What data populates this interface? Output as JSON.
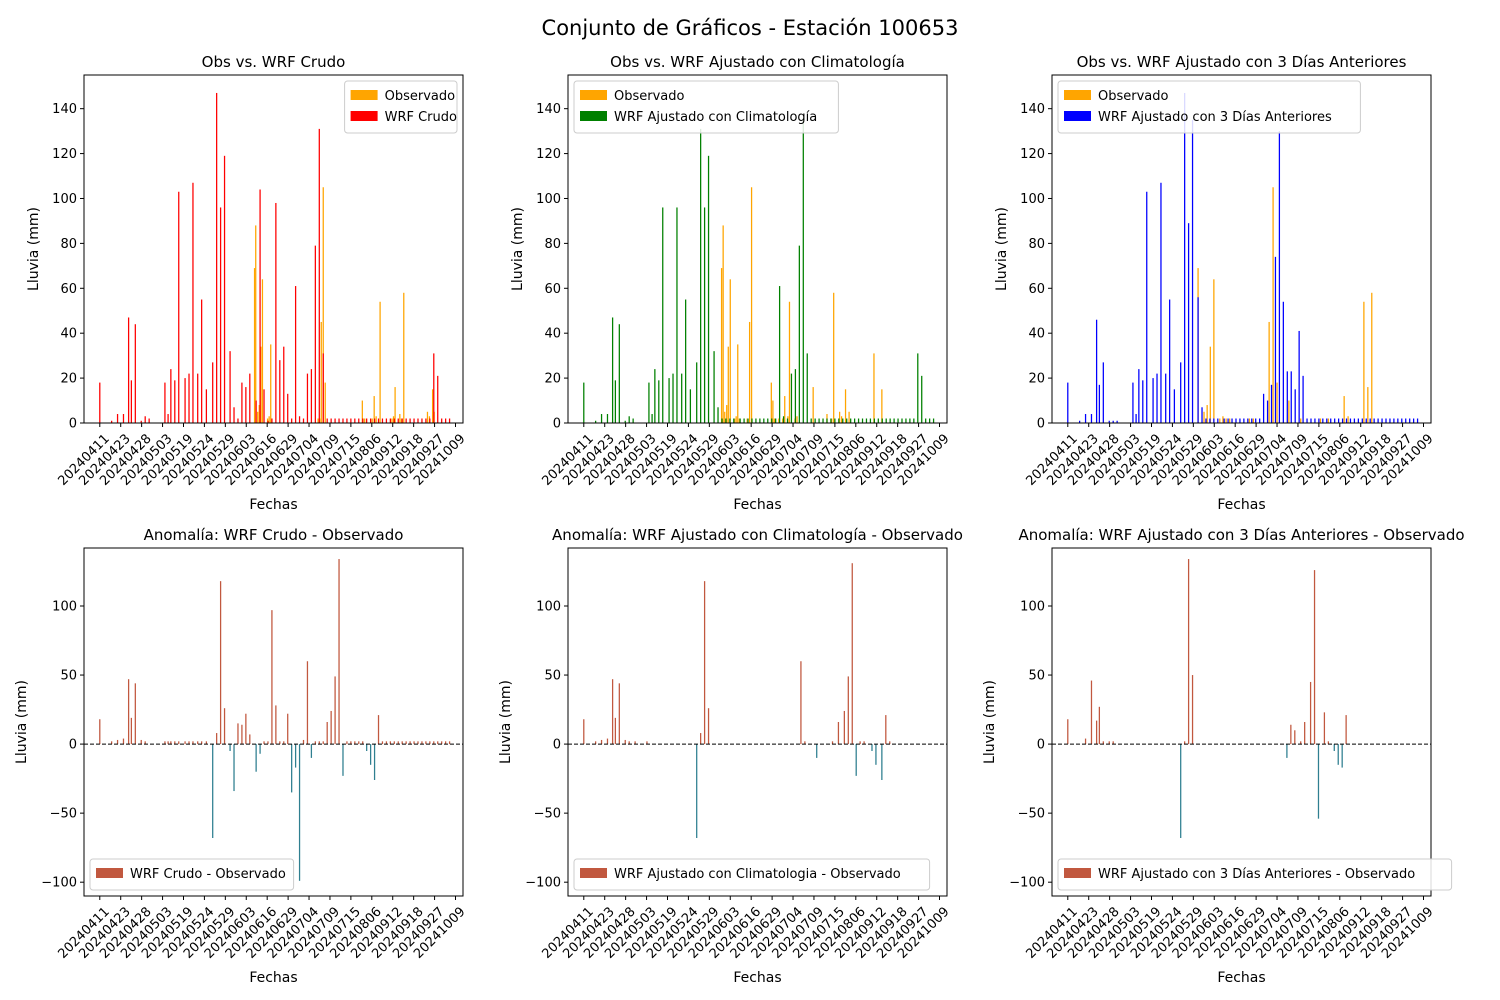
{
  "suptitle": "Conjunto de Gráficos - Estación 100653",
  "colors": {
    "observado": "#FFA500",
    "wrf_crudo": "#FF0000",
    "wrf_clima": "#008000",
    "wrf_3dias": "#0000FF",
    "anom_pos": "#C1583F",
    "anom_neg": "#2F7F90",
    "legend_patch": "#C1583F"
  },
  "x_tick_labels": [
    "20240411",
    "20240423",
    "20240428",
    "20240503",
    "20240519",
    "20240524",
    "20240529",
    "20240603",
    "20240616",
    "20240629",
    "20240704",
    "20240709",
    "20240715",
    "20240806",
    "20240912",
    "20240918",
    "20240927",
    "20241009"
  ],
  "chart_data": [
    {
      "type": "bar",
      "title": "Obs vs. WRF Crudo",
      "xlabel": "Fechas",
      "ylabel": "Lluvia (mm)",
      "ylim": [
        0,
        155
      ],
      "yticks": [
        0,
        20,
        40,
        60,
        80,
        100,
        120,
        140
      ],
      "legend_position": "upper right",
      "series": [
        {
          "name": "Observado",
          "color_key": "observado",
          "x": [
            41.2,
            41.5,
            42,
            42.4,
            42.8,
            43.2,
            44.5,
            44.9,
            45.3,
            57.3,
            57.7,
            58.1,
            58.6,
            59.1,
            68.5,
            69,
            69.5,
            71,
            71.5,
            72,
            73,
            76,
            76.4,
            76.8,
            78,
            78.4,
            79,
            85,
            85.5,
            86.3,
            86.7
          ],
          "values": [
            69,
            88,
            5,
            8,
            34,
            64,
            2,
            3,
            35,
            2,
            2,
            45,
            105,
            18,
            10,
            2,
            2,
            2,
            12,
            3,
            54,
            2,
            3,
            16,
            4,
            2,
            58,
            5,
            3,
            15,
            5
          ]
        },
        {
          "name": "WRF Crudo",
          "color_key": "wrf_crudo",
          "x": [
            2,
            5,
            6.5,
            8,
            9.3,
            10,
            11,
            12.5,
            13.5,
            14.5,
            18.5,
            19.3,
            20,
            21,
            22,
            23.6,
            24.6,
            25.6,
            26.8,
            27.8,
            29,
            30.6,
            31.6,
            32.6,
            33.6,
            35,
            36,
            37,
            38,
            39,
            40,
            41.6,
            42.6,
            43.6,
            44.6,
            45.6,
            46.6,
            47.6,
            48.6,
            49.6,
            50.6,
            51.6,
            52.6,
            53.6,
            54.6,
            55.6,
            56.6,
            57.6,
            58.6,
            59.6,
            60.6,
            61.6,
            62.6,
            63.6,
            64.6,
            65.6,
            66.6,
            67.6,
            68.6,
            69.6,
            70.6,
            71.6,
            72.6,
            73.6,
            74.6,
            75.6,
            76.6,
            77.6,
            78.6,
            79.6,
            80.6,
            81.6,
            82.6,
            83.6,
            84.6,
            85.6,
            86.6,
            87.6,
            88.6,
            89.6,
            90.6
          ],
          "values": [
            18,
            1,
            4,
            4,
            47,
            19,
            44,
            1,
            3,
            2,
            18,
            4,
            24,
            19,
            103,
            20,
            22,
            107,
            22,
            55,
            15,
            27,
            147,
            96,
            119,
            32,
            7,
            2,
            18,
            16,
            22,
            10,
            104,
            15,
            1,
            2,
            98,
            28,
            34,
            13,
            2,
            61,
            3,
            2,
            22,
            24,
            79,
            131,
            31,
            2,
            2,
            2,
            2,
            2,
            2,
            2,
            2,
            2,
            2,
            2,
            2,
            2,
            2,
            2,
            2,
            2,
            2,
            2,
            2,
            2,
            2,
            2,
            2,
            2,
            2,
            2,
            31,
            21,
            2,
            2,
            2
          ]
        }
      ]
    },
    {
      "type": "bar",
      "title": "Obs vs. WRF Ajustado con Climatología",
      "xlabel": "Fechas",
      "ylabel": "Lluvia (mm)",
      "ylim": [
        0,
        155
      ],
      "yticks": [
        0,
        20,
        40,
        60,
        80,
        100,
        120,
        140
      ],
      "legend_position": "upper left",
      "series": [
        {
          "name": "Observado",
          "color_key": "observado",
          "x": [
            36.9,
            37.3,
            37.7,
            38.2,
            38.6,
            39.1,
            40.2,
            40.6,
            41,
            41.4,
            43.4,
            44,
            44.5,
            49.5,
            49.9,
            50.3,
            51.4,
            52.4,
            52.9,
            53.7,
            54.1,
            55.5,
            56,
            60.1,
            63.6,
            64.8,
            65.3,
            66.8,
            67.3,
            68.3,
            69.2,
            75.5,
            77.5
          ],
          "values": [
            69,
            88,
            5,
            8,
            34,
            64,
            2,
            3,
            35,
            2,
            2,
            45,
            105,
            18,
            10,
            2,
            2,
            2,
            12,
            3,
            54,
            2,
            3,
            16,
            4,
            2,
            58,
            5,
            3,
            15,
            5,
            31,
            15
          ]
        },
        {
          "name": "WRF Ajustado con Climatología",
          "color_key": "wrf_clima",
          "x": [
            2,
            5,
            6.5,
            8,
            9.3,
            10,
            11,
            12.5,
            13.5,
            14.5,
            18.5,
            19.3,
            20,
            21,
            22,
            23.6,
            24.6,
            25.6,
            26.8,
            27.8,
            29,
            30.6,
            31.6,
            32.6,
            33.6,
            35,
            36,
            37,
            38,
            39,
            40,
            41.6,
            42.6,
            43.6,
            44.6,
            45.6,
            46.6,
            47.6,
            48.6,
            49.6,
            50.6,
            51.6,
            52.6,
            53.6,
            54.6,
            55.6,
            56.6,
            57.6,
            58.6,
            59.6,
            60.6,
            61.6,
            62.6,
            63.6,
            64.6,
            65.6,
            66.6,
            67.6,
            68.6,
            69.6,
            70.6,
            71.6,
            72.6,
            73.6,
            74.6,
            75.6,
            76.6,
            77.6,
            78.6,
            79.6,
            80.6,
            81.6,
            82.6,
            83.6,
            84.6,
            85.6,
            86.6,
            87.6,
            88.6,
            89.6,
            90.6
          ],
          "values": [
            18,
            1,
            4,
            4,
            47,
            19,
            44,
            1,
            3,
            2,
            18,
            4,
            24,
            19,
            96,
            20,
            22,
            96,
            22,
            55,
            15,
            27,
            131,
            96,
            119,
            32,
            7,
            2,
            2,
            2,
            2,
            2,
            2,
            2,
            2,
            2,
            2,
            2,
            2,
            2,
            2,
            61,
            3,
            2,
            22,
            24,
            79,
            136,
            31,
            2,
            2,
            2,
            2,
            2,
            2,
            2,
            2,
            2,
            2,
            2,
            2,
            2,
            2,
            2,
            2,
            2,
            2,
            2,
            2,
            2,
            2,
            2,
            2,
            2,
            2,
            2,
            31,
            21,
            2,
            2,
            2
          ]
        }
      ]
    },
    {
      "type": "bar",
      "title": "Obs vs. WRF Ajustado con 3 Días Anteriores",
      "xlabel": "Fechas",
      "ylabel": "Lluvia (mm)",
      "ylim": [
        0,
        155
      ],
      "yticks": [
        0,
        20,
        40,
        60,
        80,
        100,
        120,
        140
      ],
      "legend_position": "upper left",
      "series": [
        {
          "name": "Observado",
          "color_key": "observado",
          "x": [
            35,
            36.5,
            37.3,
            38.1,
            39,
            40.5,
            41.3,
            42.1,
            43,
            48,
            49,
            53,
            54,
            55,
            58,
            61,
            66,
            68,
            72,
            73,
            77,
            78,
            79
          ],
          "values": [
            69,
            5,
            8,
            34,
            64,
            2,
            3,
            2,
            2,
            2,
            2,
            45,
            105,
            18,
            10,
            2,
            2,
            2,
            12,
            3,
            54,
            16,
            58
          ]
        },
        {
          "name": "WRF Ajustado con 3 Días Anteriores",
          "color_key": "wrf_3dias",
          "x": [
            2,
            5,
            6.5,
            8,
            9.3,
            10,
            11,
            12.5,
            13.5,
            14.5,
            18.5,
            19.3,
            20,
            21,
            22,
            23.6,
            24.6,
            25.6,
            26.8,
            27.8,
            29,
            30.6,
            31.6,
            32.6,
            33.6,
            35,
            36,
            37,
            38,
            39,
            40,
            41.6,
            42.6,
            43.6,
            44.6,
            45.6,
            46.6,
            47.6,
            48.6,
            49.6,
            50.6,
            51.6,
            52.6,
            53.6,
            54.6,
            55.6,
            56.6,
            57.6,
            58.6,
            59.6,
            60.6,
            61.6,
            62.6,
            63.6,
            64.6,
            65.6,
            66.6,
            67.6,
            68.6,
            69.6,
            70.6,
            71.6,
            72.6,
            73.6,
            74.6,
            75.6,
            76.6,
            77.6,
            78.6,
            79.6,
            80.6,
            81.6,
            82.6,
            83.6,
            84.6,
            85.6,
            86.6,
            87.6,
            88.6,
            89.6,
            90.6
          ],
          "values": [
            18,
            1,
            4,
            4,
            46,
            17,
            27,
            1,
            1,
            1,
            18,
            4,
            24,
            19,
            103,
            20,
            22,
            107,
            22,
            55,
            15,
            27,
            147,
            89,
            135,
            56,
            7,
            2,
            2,
            2,
            2,
            2,
            2,
            2,
            2,
            2,
            2,
            2,
            2,
            2,
            2,
            13,
            10,
            17,
            74,
            130,
            54,
            23,
            23,
            15,
            41,
            21,
            2,
            2,
            2,
            2,
            2,
            2,
            2,
            2,
            2,
            2,
            2,
            2,
            2,
            2,
            2,
            2,
            2,
            2,
            2,
            2,
            2,
            2,
            2,
            2,
            2,
            2,
            2,
            2,
            2
          ]
        }
      ]
    },
    {
      "type": "bar",
      "title": "Anomalía: WRF Crudo - Observado",
      "xlabel": "Fechas",
      "ylabel": "Lluvia (mm)",
      "ylim": [
        -110,
        142
      ],
      "yticks": [
        -100,
        -50,
        0,
        50,
        100
      ],
      "zero_line": true,
      "legend_position": "lower left",
      "series": [
        {
          "name": "WRF Crudo - Observado",
          "x": [
            2,
            5,
            6.5,
            8,
            9.3,
            10,
            11,
            12.5,
            13.5,
            18.5,
            19.3,
            20,
            21,
            22,
            23.6,
            24.6,
            25.6,
            26.8,
            27.8,
            29,
            30.6,
            31.6,
            32.6,
            33.6,
            35,
            36,
            37,
            38,
            39,
            40,
            41.6,
            42.6,
            43.6,
            44.6,
            45.6,
            46.6,
            47.6,
            48.6,
            49.6,
            50.6,
            51.6,
            52.6,
            53.6,
            54.6,
            55.6,
            56.6,
            57.6,
            58.6,
            59.6,
            60.6,
            61.6,
            62.6,
            63.6,
            64.6,
            65.6,
            66.6,
            67.6,
            68.6,
            69.6,
            70.6,
            71.6,
            72.6,
            73.6,
            74.6,
            75.6,
            76.6,
            77.6,
            78.6,
            79.6,
            80.6,
            81.6,
            82.6,
            83.6,
            84.6,
            85.6,
            86.6,
            87.6,
            88.6,
            89.6,
            90.6
          ],
          "values": [
            18,
            2,
            3,
            4,
            47,
            19,
            44,
            3,
            2,
            2,
            2,
            2,
            2,
            2,
            2,
            2,
            2,
            2,
            2,
            2,
            -68,
            8,
            118,
            26,
            -5,
            -34,
            15,
            14,
            22,
            7,
            -20,
            -7,
            2,
            2,
            97,
            28,
            2,
            2,
            22,
            -35,
            -17,
            -99,
            3,
            60,
            -10,
            2,
            2,
            2,
            16,
            24,
            49,
            134,
            -23,
            2,
            2,
            2,
            2,
            2,
            -5,
            -15,
            -26,
            21,
            2,
            2,
            2,
            2,
            2,
            2,
            2,
            2,
            2,
            2,
            2,
            2,
            2,
            2,
            2,
            2,
            2,
            2
          ]
        }
      ]
    },
    {
      "type": "bar",
      "title": "Anomalía: WRF Ajustado con Climatología - Observado",
      "xlabel": "Fechas",
      "ylabel": "Lluvia (mm)",
      "ylim": [
        -110,
        142
      ],
      "yticks": [
        -100,
        -50,
        0,
        50,
        100
      ],
      "zero_line": true,
      "legend_position": "lower left",
      "series": [
        {
          "name": "WRF Ajustado con Climatologia - Observado",
          "x": [
            2,
            5,
            6.5,
            8,
            9.3,
            10,
            11,
            12.5,
            13.5,
            15,
            18,
            30.6,
            31.6,
            32.6,
            33.6,
            57,
            58,
            61,
            65,
            66.5,
            68,
            69,
            70,
            71,
            72,
            73,
            75,
            76,
            77.5,
            78.5,
            79.5
          ],
          "values": [
            18,
            2,
            3,
            4,
            47,
            19,
            44,
            3,
            2,
            2,
            2,
            -68,
            8,
            118,
            26,
            60,
            2,
            -10,
            2,
            16,
            24,
            49,
            131,
            -23,
            2,
            2,
            -5,
            -15,
            -26,
            21,
            2
          ]
        }
      ]
    },
    {
      "type": "bar",
      "title": "Anomalía: WRF Ajustado con 3 Días Anteriores - Observado",
      "xlabel": "Fechas",
      "ylabel": "Lluvia (mm)",
      "ylim": [
        -110,
        142
      ],
      "yticks": [
        -100,
        -50,
        0,
        50,
        100
      ],
      "zero_line": true,
      "legend_position": "lower left",
      "series": [
        {
          "name": "WRF Ajustado con 3 Días Anteriores - Observado",
          "x": [
            2,
            6.5,
            8,
            9.3,
            10,
            11,
            12.5,
            13.5,
            30.6,
            31.6,
            32.6,
            33.6,
            57.5,
            58.5,
            59.5,
            61,
            62,
            63.5,
            64.5,
            65.5,
            67,
            68,
            69.5,
            70.5,
            71.5,
            72.5
          ],
          "values": [
            18,
            4,
            46,
            17,
            27,
            2,
            2,
            2,
            -68,
            2,
            134,
            50,
            -10,
            14,
            10,
            2,
            16,
            45,
            126,
            -54,
            23,
            2,
            -5,
            -15,
            -17,
            21
          ]
        }
      ]
    }
  ]
}
